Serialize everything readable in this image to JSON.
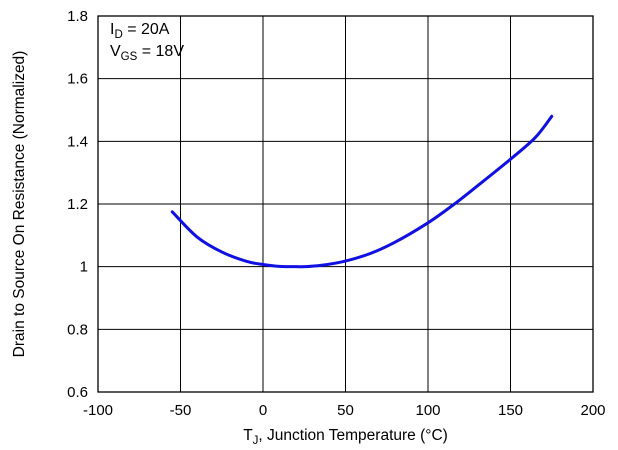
{
  "chart_data": {
    "type": "line",
    "xlabel": {
      "main": "T",
      "sub": "J",
      "rest": ", Junction Temperature (°C)"
    },
    "ylabel": "Drain to Source On Resistance (Normalized)",
    "xlim": [
      -100,
      200
    ],
    "ylim": [
      0.6,
      1.8
    ],
    "x_ticks": [
      "-100",
      "-50",
      "0",
      "50",
      "100",
      "150",
      "200"
    ],
    "y_ticks": [
      "0.6",
      "0.8",
      "1",
      "1.2",
      "1.4",
      "1.6",
      "1.8"
    ],
    "x_tick_values": [
      -100,
      -50,
      0,
      50,
      100,
      150,
      200
    ],
    "y_tick_values": [
      0.6,
      0.8,
      1.0,
      1.2,
      1.4,
      1.6,
      1.8
    ],
    "grid": true,
    "annotations": [
      {
        "main": "I",
        "sub": "D",
        "rest": " = 20A"
      },
      {
        "main": "V",
        "sub": "GS",
        "rest": " = 18V"
      }
    ],
    "series": [
      {
        "color": "#1010e0",
        "x": [
          -55,
          -40,
          -25,
          -10,
          0,
          10,
          20,
          25,
          35,
          50,
          65,
          80,
          100,
          115,
          130,
          150,
          165,
          175
        ],
        "y": [
          1.175,
          1.095,
          1.047,
          1.017,
          1.007,
          1.001,
          1.0,
          1.0,
          1.004,
          1.018,
          1.042,
          1.078,
          1.14,
          1.196,
          1.258,
          1.343,
          1.412,
          1.48
        ]
      }
    ]
  }
}
